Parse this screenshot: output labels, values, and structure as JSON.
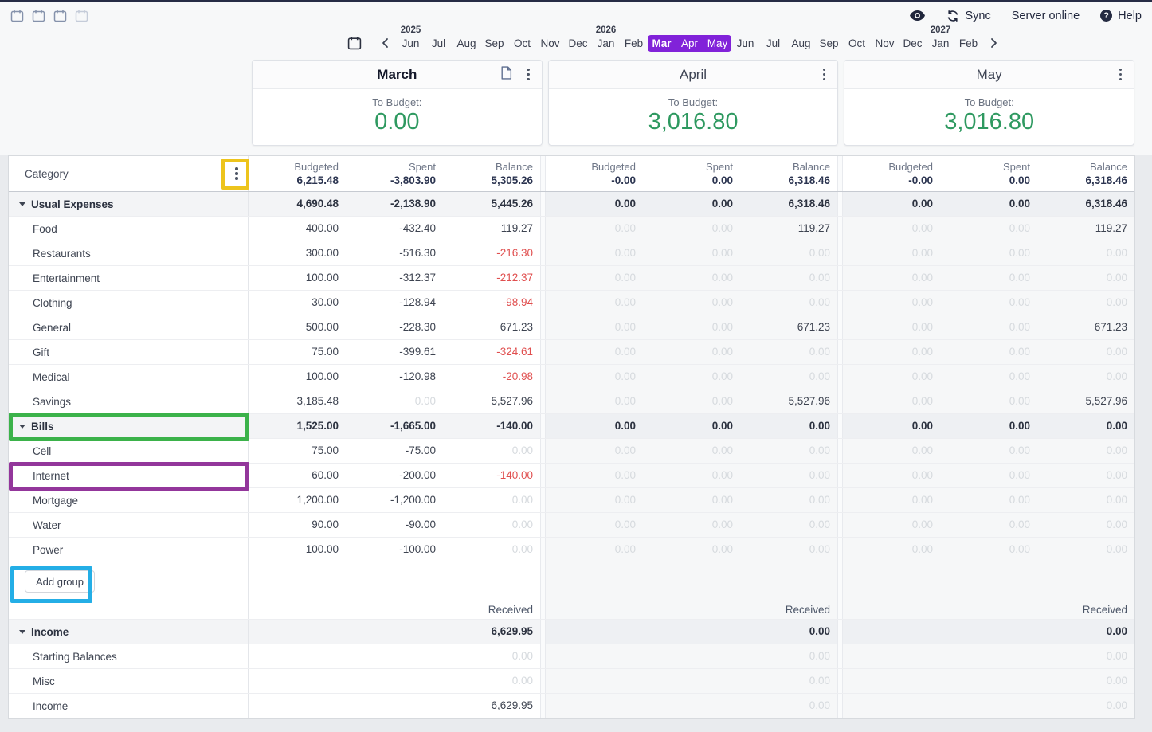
{
  "topbar": {
    "left_icons": [
      {
        "name": "one-month-view-icon",
        "active": true
      },
      {
        "name": "two-month-view-icon",
        "active": true
      },
      {
        "name": "three-month-view-icon",
        "active": true
      },
      {
        "name": "four-month-view-icon",
        "active": false
      }
    ],
    "right": {
      "privacy_icon": "eye-icon",
      "sync_label": "Sync",
      "server_status_label": "Server online",
      "help_label": "Help"
    }
  },
  "month_nav": {
    "items": [
      {
        "label": "Jun",
        "year_above": "2025"
      },
      {
        "label": "Jul"
      },
      {
        "label": "Aug"
      },
      {
        "label": "Sep"
      },
      {
        "label": "Oct"
      },
      {
        "label": "Nov"
      },
      {
        "label": "Dec"
      },
      {
        "label": "Jan",
        "year_above": "2026"
      },
      {
        "label": "Feb"
      },
      {
        "label": "Mar",
        "selected": true,
        "bold": true
      },
      {
        "label": "Apr",
        "selected": true
      },
      {
        "label": "May",
        "selected": true
      },
      {
        "label": "Jun"
      },
      {
        "label": "Jul"
      },
      {
        "label": "Aug"
      },
      {
        "label": "Sep"
      },
      {
        "label": "Oct"
      },
      {
        "label": "Nov"
      },
      {
        "label": "Dec"
      },
      {
        "label": "Jan",
        "year_above": "2027"
      },
      {
        "label": "Feb"
      }
    ],
    "selected_color": "#8122d9"
  },
  "months": [
    {
      "name": "March",
      "current": true,
      "has_note_icon": true,
      "to_budget_label": "To Budget:",
      "to_budget_value": "0.00"
    },
    {
      "name": "April",
      "current": false,
      "has_note_icon": false,
      "to_budget_label": "To Budget:",
      "to_budget_value": "3,016.80"
    },
    {
      "name": "May",
      "current": false,
      "has_note_icon": false,
      "to_budget_label": "To Budget:",
      "to_budget_value": "3,016.80"
    }
  ],
  "table": {
    "category_header_label": "Category",
    "column_labels": [
      "Budgeted",
      "Spent",
      "Balance"
    ],
    "month_totals": [
      {
        "budgeted": "6,215.48",
        "spent": "-3,803.90",
        "balance": "5,305.26"
      },
      {
        "budgeted": "-0.00",
        "spent": "0.00",
        "balance": "6,318.46"
      },
      {
        "budgeted": "-0.00",
        "spent": "0.00",
        "balance": "6,318.46"
      }
    ],
    "budget_rows": [
      {
        "label": "Usual Expenses",
        "group": true,
        "cells": [
          [
            [
              "4,690.48",
              "b"
            ],
            [
              "-2,138.90",
              "b"
            ],
            [
              "5,445.26",
              "b"
            ]
          ],
          [
            [
              "0.00",
              "b"
            ],
            [
              "0.00",
              "b"
            ],
            [
              "6,318.46",
              "b"
            ]
          ],
          [
            [
              "0.00",
              "b"
            ],
            [
              "0.00",
              "b"
            ],
            [
              "6,318.46",
              "b"
            ]
          ]
        ]
      },
      {
        "label": "Food",
        "cells": [
          [
            [
              "400.00",
              "n"
            ],
            [
              "-432.40",
              "n"
            ],
            [
              "119.27",
              "n"
            ]
          ],
          [
            [
              "0.00",
              "f"
            ],
            [
              "0.00",
              "f"
            ],
            [
              "119.27",
              "n"
            ]
          ],
          [
            [
              "0.00",
              "f"
            ],
            [
              "0.00",
              "f"
            ],
            [
              "119.27",
              "n"
            ]
          ]
        ]
      },
      {
        "label": "Restaurants",
        "cells": [
          [
            [
              "300.00",
              "n"
            ],
            [
              "-516.30",
              "n"
            ],
            [
              "-216.30",
              "r"
            ]
          ],
          [
            [
              "0.00",
              "f"
            ],
            [
              "0.00",
              "f"
            ],
            [
              "0.00",
              "f"
            ]
          ],
          [
            [
              "0.00",
              "f"
            ],
            [
              "0.00",
              "f"
            ],
            [
              "0.00",
              "f"
            ]
          ]
        ]
      },
      {
        "label": "Entertainment",
        "cells": [
          [
            [
              "100.00",
              "n"
            ],
            [
              "-312.37",
              "n"
            ],
            [
              "-212.37",
              "r"
            ]
          ],
          [
            [
              "0.00",
              "f"
            ],
            [
              "0.00",
              "f"
            ],
            [
              "0.00",
              "f"
            ]
          ],
          [
            [
              "0.00",
              "f"
            ],
            [
              "0.00",
              "f"
            ],
            [
              "0.00",
              "f"
            ]
          ]
        ]
      },
      {
        "label": "Clothing",
        "cells": [
          [
            [
              "30.00",
              "n"
            ],
            [
              "-128.94",
              "n"
            ],
            [
              "-98.94",
              "r"
            ]
          ],
          [
            [
              "0.00",
              "f"
            ],
            [
              "0.00",
              "f"
            ],
            [
              "0.00",
              "f"
            ]
          ],
          [
            [
              "0.00",
              "f"
            ],
            [
              "0.00",
              "f"
            ],
            [
              "0.00",
              "f"
            ]
          ]
        ]
      },
      {
        "label": "General",
        "cells": [
          [
            [
              "500.00",
              "n"
            ],
            [
              "-228.30",
              "n"
            ],
            [
              "671.23",
              "n"
            ]
          ],
          [
            [
              "0.00",
              "f"
            ],
            [
              "0.00",
              "f"
            ],
            [
              "671.23",
              "n"
            ]
          ],
          [
            [
              "0.00",
              "f"
            ],
            [
              "0.00",
              "f"
            ],
            [
              "671.23",
              "n"
            ]
          ]
        ]
      },
      {
        "label": "Gift",
        "cells": [
          [
            [
              "75.00",
              "n"
            ],
            [
              "-399.61",
              "n"
            ],
            [
              "-324.61",
              "r"
            ]
          ],
          [
            [
              "0.00",
              "f"
            ],
            [
              "0.00",
              "f"
            ],
            [
              "0.00",
              "f"
            ]
          ],
          [
            [
              "0.00",
              "f"
            ],
            [
              "0.00",
              "f"
            ],
            [
              "0.00",
              "f"
            ]
          ]
        ]
      },
      {
        "label": "Medical",
        "cells": [
          [
            [
              "100.00",
              "n"
            ],
            [
              "-120.98",
              "n"
            ],
            [
              "-20.98",
              "r"
            ]
          ],
          [
            [
              "0.00",
              "f"
            ],
            [
              "0.00",
              "f"
            ],
            [
              "0.00",
              "f"
            ]
          ],
          [
            [
              "0.00",
              "f"
            ],
            [
              "0.00",
              "f"
            ],
            [
              "0.00",
              "f"
            ]
          ]
        ]
      },
      {
        "label": "Savings",
        "cells": [
          [
            [
              "3,185.48",
              "n"
            ],
            [
              "0.00",
              "f"
            ],
            [
              "5,527.96",
              "n"
            ]
          ],
          [
            [
              "0.00",
              "f"
            ],
            [
              "0.00",
              "f"
            ],
            [
              "5,527.96",
              "n"
            ]
          ],
          [
            [
              "0.00",
              "f"
            ],
            [
              "0.00",
              "f"
            ],
            [
              "5,527.96",
              "n"
            ]
          ]
        ]
      },
      {
        "label": "Bills",
        "group": true,
        "cells": [
          [
            [
              "1,525.00",
              "b"
            ],
            [
              "-1,665.00",
              "b"
            ],
            [
              "-140.00",
              "b"
            ]
          ],
          [
            [
              "0.00",
              "b"
            ],
            [
              "0.00",
              "b"
            ],
            [
              "0.00",
              "b"
            ]
          ],
          [
            [
              "0.00",
              "b"
            ],
            [
              "0.00",
              "b"
            ],
            [
              "0.00",
              "b"
            ]
          ]
        ]
      },
      {
        "label": "Cell",
        "cells": [
          [
            [
              "75.00",
              "n"
            ],
            [
              "-75.00",
              "n"
            ],
            [
              "0.00",
              "f"
            ]
          ],
          [
            [
              "0.00",
              "f"
            ],
            [
              "0.00",
              "f"
            ],
            [
              "0.00",
              "f"
            ]
          ],
          [
            [
              "0.00",
              "f"
            ],
            [
              "0.00",
              "f"
            ],
            [
              "0.00",
              "f"
            ]
          ]
        ]
      },
      {
        "label": "Internet",
        "cells": [
          [
            [
              "60.00",
              "n"
            ],
            [
              "-200.00",
              "n"
            ],
            [
              "-140.00",
              "r"
            ]
          ],
          [
            [
              "0.00",
              "f"
            ],
            [
              "0.00",
              "f"
            ],
            [
              "0.00",
              "f"
            ]
          ],
          [
            [
              "0.00",
              "f"
            ],
            [
              "0.00",
              "f"
            ],
            [
              "0.00",
              "f"
            ]
          ]
        ]
      },
      {
        "label": "Mortgage",
        "cells": [
          [
            [
              "1,200.00",
              "n"
            ],
            [
              "-1,200.00",
              "n"
            ],
            [
              "0.00",
              "f"
            ]
          ],
          [
            [
              "0.00",
              "f"
            ],
            [
              "0.00",
              "f"
            ],
            [
              "0.00",
              "f"
            ]
          ],
          [
            [
              "0.00",
              "f"
            ],
            [
              "0.00",
              "f"
            ],
            [
              "0.00",
              "f"
            ]
          ]
        ]
      },
      {
        "label": "Water",
        "cells": [
          [
            [
              "90.00",
              "n"
            ],
            [
              "-90.00",
              "n"
            ],
            [
              "0.00",
              "f"
            ]
          ],
          [
            [
              "0.00",
              "f"
            ],
            [
              "0.00",
              "f"
            ],
            [
              "0.00",
              "f"
            ]
          ],
          [
            [
              "0.00",
              "f"
            ],
            [
              "0.00",
              "f"
            ],
            [
              "0.00",
              "f"
            ]
          ]
        ]
      },
      {
        "label": "Power",
        "cells": [
          [
            [
              "100.00",
              "n"
            ],
            [
              "-100.00",
              "n"
            ],
            [
              "0.00",
              "f"
            ]
          ],
          [
            [
              "0.00",
              "f"
            ],
            [
              "0.00",
              "f"
            ],
            [
              "0.00",
              "f"
            ]
          ],
          [
            [
              "0.00",
              "f"
            ],
            [
              "0.00",
              "f"
            ],
            [
              "0.00",
              "f"
            ]
          ]
        ]
      }
    ],
    "add_group_label": "Add group",
    "received_label": "Received",
    "income_rows": [
      {
        "label": "Income",
        "group": true,
        "cells": [
          [
            "6,629.95",
            "b"
          ],
          [
            "0.00",
            "b"
          ],
          [
            "0.00",
            "b"
          ]
        ]
      },
      {
        "label": "Starting Balances",
        "cells": [
          [
            "0.00",
            "f"
          ],
          [
            "0.00",
            "f"
          ],
          [
            "0.00",
            "f"
          ]
        ]
      },
      {
        "label": "Misc",
        "cells": [
          [
            "0.00",
            "f"
          ],
          [
            "0.00",
            "f"
          ],
          [
            "0.00",
            "f"
          ]
        ]
      },
      {
        "label": "Income",
        "cells": [
          [
            "6,629.95",
            "n"
          ],
          [
            "0.00",
            "f"
          ],
          [
            "0.00",
            "f"
          ]
        ]
      }
    ]
  },
  "annotations": [
    {
      "name": "category-menu-highlight",
      "color": "#edc41c",
      "target": "category header kebab menu"
    },
    {
      "name": "bills-row-highlight",
      "color": "#3bb24a",
      "target": "Bills group row"
    },
    {
      "name": "internet-row-highlight",
      "color": "#93369b",
      "target": "Internet category row"
    },
    {
      "name": "add-group-highlight",
      "color": "#24aee6",
      "target": "Add group button"
    }
  ],
  "colors": {
    "to_budget_green": "#2e9960",
    "negative_red": "#e04f4f",
    "selected_month_purple": "#8122d9",
    "header_total_navy": "#2b3450",
    "top_border_navy": "#262c45"
  }
}
